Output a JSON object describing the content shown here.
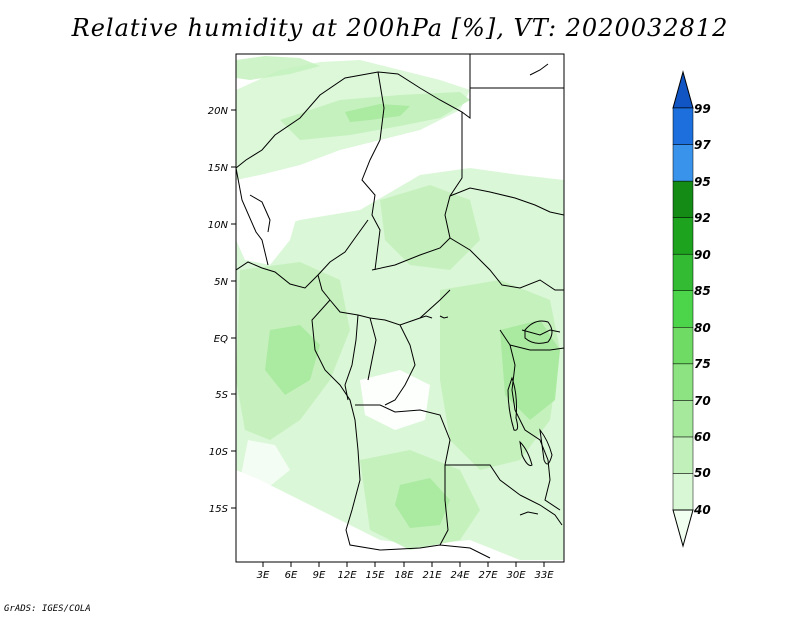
{
  "title": "Relative humidity at 200hPa [%], VT: 2020032812",
  "credit": "GrADS: IGES/COLA",
  "map": {
    "lat_ticks": [
      "20N",
      "15N",
      "10N",
      "5N",
      "EQ",
      "5S",
      "10S",
      "15S"
    ],
    "lon_ticks": [
      "3E",
      "6E",
      "9E",
      "12E",
      "15E",
      "18E",
      "21E",
      "24E",
      "27E",
      "30E",
      "33E"
    ]
  },
  "colorbar": {
    "labels": [
      "40",
      "50",
      "60",
      "70",
      "75",
      "80",
      "85",
      "90",
      "92",
      "95",
      "97",
      "99"
    ],
    "colors": [
      "#f0fff0",
      "#d8f7d5",
      "#c2f0ba",
      "#a6e99c",
      "#8de281",
      "#6fdb65",
      "#4cd44a",
      "#33bb34",
      "#1ea31f",
      "#138b14",
      "#3a93eb",
      "#1c6fdc",
      "#1155c4"
    ]
  }
}
